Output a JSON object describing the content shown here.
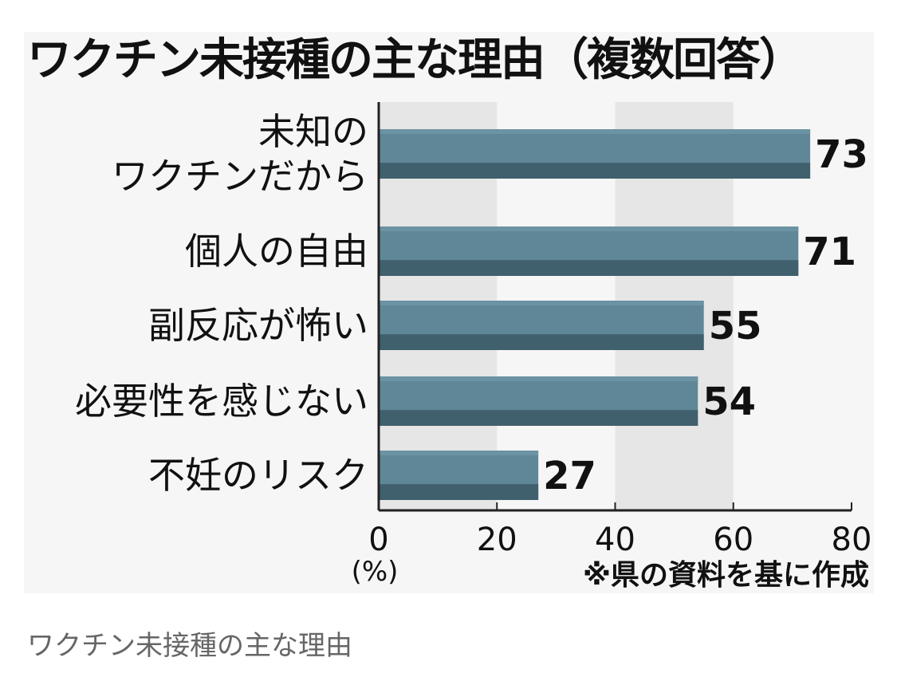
{
  "title": "ワクチン未接種の主な理由（複数回答）",
  "caption": "ワクチン未接種の主な理由",
  "chart_data": {
    "type": "bar",
    "orientation": "horizontal",
    "title": "ワクチン未接種の主な理由（複数回答）",
    "categories": [
      [
        "未知の",
        "ワクチンだから"
      ],
      [
        "個人の自由"
      ],
      [
        "副反応が怖い"
      ],
      [
        "必要性を感じない"
      ],
      [
        "不妊のリスク"
      ]
    ],
    "values": [
      73,
      71,
      55,
      54,
      27
    ],
    "data_labels": [
      "73",
      "71",
      "55",
      "54",
      "27"
    ],
    "x_ticks": [
      "0",
      "20",
      "40",
      "60",
      "80"
    ],
    "xlim": [
      0,
      80
    ],
    "unit_label": "(%)",
    "source_note": "※県の資料を基に作成",
    "grid": "alternating vertical bands",
    "colors": {
      "bar": "#5f8797",
      "bar_top": "#6b93a3",
      "bar_bottom": "#41606d",
      "band": "#e6e6e6",
      "panel": "#f6f6f6"
    }
  }
}
